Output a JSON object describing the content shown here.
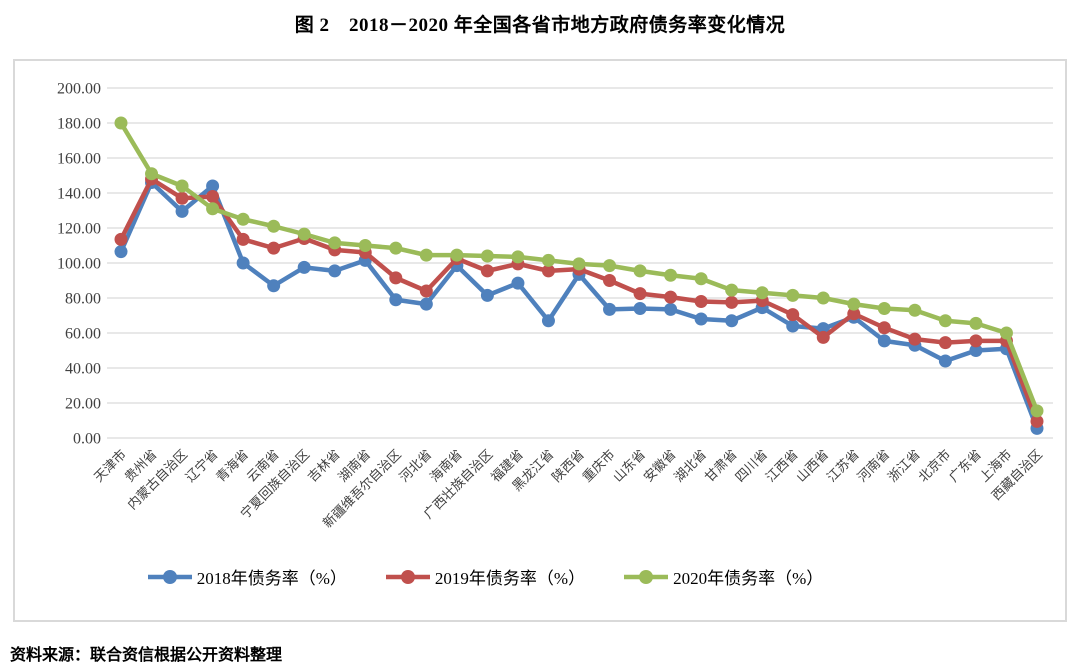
{
  "page": {
    "title": "图 2　2018－2020 年全国各省市地方政府债务率变化情况",
    "source": "资料来源：联合资信根据公开资料整理"
  },
  "chart_data": {
    "type": "line",
    "title": "图 2　2018－2020 年全国各省市地方政府债务率变化情况",
    "categories": [
      "天津市",
      "贵州省",
      "内蒙古自治区",
      "辽宁省",
      "青海省",
      "云南省",
      "宁夏回族自治区",
      "吉林省",
      "湖南省",
      "新疆维吾尔自治区",
      "河北省",
      "海南省",
      "广西壮族自治区",
      "福建省",
      "黑龙江省",
      "陕西省",
      "重庆市",
      "山东省",
      "安徽省",
      "湖北省",
      "甘肃省",
      "四川省",
      "江西省",
      "山西省",
      "江苏省",
      "河南省",
      "浙江省",
      "北京市",
      "广东省",
      "上海市",
      "西藏自治区"
    ],
    "series": [
      {
        "name": "2018年债务率（%）",
        "color": "#4F81BD",
        "values": [
          106.5,
          146,
          129.5,
          144,
          100,
          87,
          97.5,
          95.5,
          101.5,
          79,
          76.5,
          98.5,
          81.5,
          88.5,
          67,
          93.5,
          73.5,
          74,
          73.5,
          68,
          67,
          74.5,
          64,
          62.5,
          69,
          55.5,
          53,
          44,
          50,
          51,
          5.5
        ]
      },
      {
        "name": "2019年债务率（%）",
        "color": "#C0504D",
        "values": [
          113.5,
          148,
          137,
          138,
          113.5,
          108.5,
          114,
          107.5,
          106,
          91.5,
          84,
          102.5,
          95.5,
          99.5,
          95.5,
          96.5,
          90,
          82.5,
          80.5,
          78,
          77.5,
          78.5,
          70.5,
          57.5,
          71,
          63,
          56.5,
          54.5,
          55.5,
          55.5,
          9.5
        ]
      },
      {
        "name": "2020年债务率（%）",
        "color": "#9BBB59",
        "values": [
          180,
          151,
          144,
          131,
          125,
          121,
          116.5,
          111.5,
          110,
          108.5,
          104.5,
          104.5,
          104,
          103.5,
          101.5,
          99.5,
          98.5,
          95.5,
          93,
          91,
          84.5,
          83,
          81.5,
          80,
          76.5,
          74,
          73,
          67,
          65.5,
          60,
          15.5
        ]
      }
    ],
    "xlabel": "",
    "ylabel": "",
    "ylim": [
      0,
      200
    ],
    "ytick_step": 20,
    "ytick_labels": [
      "0.00",
      "20.00",
      "40.00",
      "60.00",
      "80.00",
      "100.00",
      "120.00",
      "140.00",
      "160.00",
      "180.00",
      "200.00"
    ],
    "grid": "horizontal",
    "gridline_color": "#D9D9D9",
    "axis_text_color": "#404040",
    "legend_position": "bottom"
  }
}
